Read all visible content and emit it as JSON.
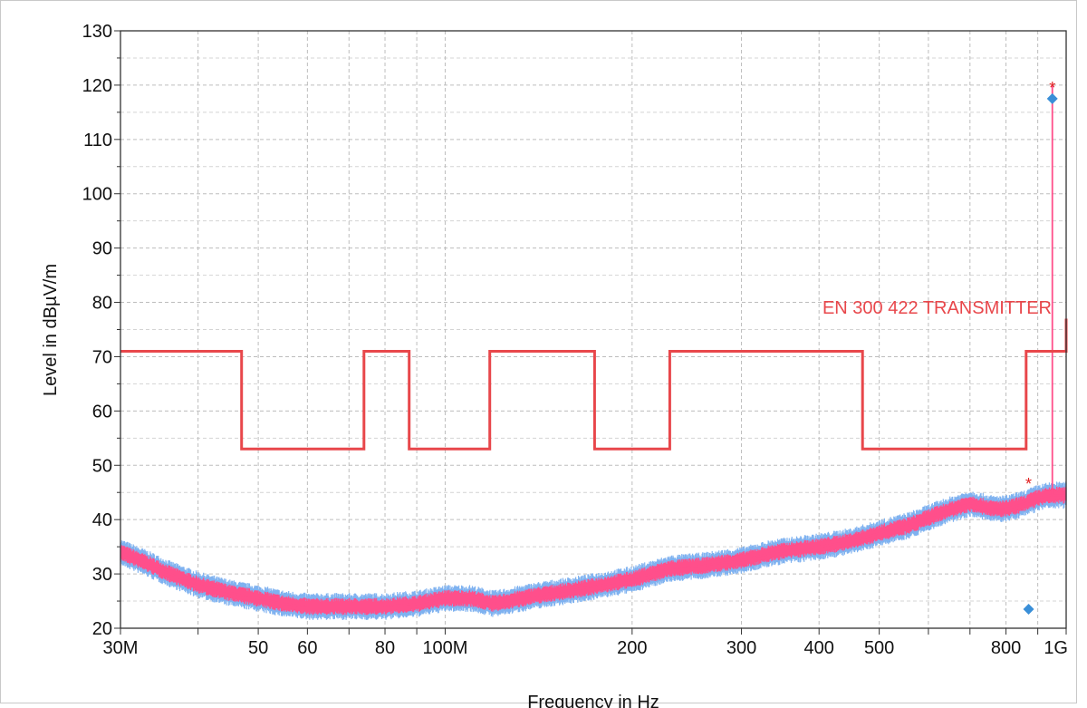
{
  "chart_data": {
    "type": "line",
    "xscale": "log",
    "xlabel": "Frequency in Hz",
    "ylabel": "Level in dBµV/m",
    "xlim": [
      30000000,
      1000000000
    ],
    "ylim": [
      20,
      130
    ],
    "grid": true,
    "x_ticks": [
      {
        "value": 30000000,
        "label": "30M"
      },
      {
        "value": 50000000,
        "label": "50"
      },
      {
        "value": 60000000,
        "label": "60"
      },
      {
        "value": 80000000,
        "label": "80"
      },
      {
        "value": 100000000,
        "label": "100M"
      },
      {
        "value": 200000000,
        "label": "200"
      },
      {
        "value": 300000000,
        "label": "300"
      },
      {
        "value": 400000000,
        "label": "400"
      },
      {
        "value": 500000000,
        "label": "500"
      },
      {
        "value": 800000000,
        "label": "800"
      },
      {
        "value": 1000000000,
        "label": "1G"
      }
    ],
    "x_minor": [
      40000000,
      70000000,
      90000000,
      600000000,
      700000000,
      900000000
    ],
    "y_ticks": [
      20,
      30,
      40,
      50,
      60,
      70,
      80,
      90,
      100,
      110,
      120,
      130
    ],
    "limit_line": {
      "name": "EN 300 422 TRANSMITTER",
      "color": "#e8474b",
      "x": [
        30000000,
        47000000,
        47000000,
        74000000,
        74000000,
        87500000,
        87500000,
        118000000,
        118000000,
        174000000,
        174000000,
        230000000,
        230000000,
        470000000,
        470000000,
        862000000,
        862000000,
        1000000000,
        1000000000
      ],
      "y": [
        71,
        71,
        53,
        53,
        71,
        71,
        53,
        53,
        71,
        71,
        53,
        53,
        71,
        71,
        53,
        53,
        71,
        71,
        77
      ]
    },
    "series": [
      {
        "color": "#ff4f8b",
        "noise_color": "#7fb2f0",
        "x": [
          30000000,
          33000000,
          36000000,
          40000000,
          45000000,
          50000000,
          55000000,
          60000000,
          65000000,
          70000000,
          75000000,
          80000000,
          90000000,
          100000000,
          110000000,
          120000000,
          140000000,
          160000000,
          180000000,
          200000000,
          230000000,
          260000000,
          300000000,
          340000000,
          400000000,
          450000000,
          500000000,
          560000000,
          620000000,
          700000000,
          760000000,
          800000000,
          860000000,
          900000000,
          950000000,
          1000000000
        ],
        "y": [
          34,
          32,
          30,
          28,
          26.5,
          25.5,
          24.5,
          24,
          24,
          24,
          24,
          24,
          24.5,
          25.5,
          25.5,
          24.5,
          26,
          27,
          28,
          29,
          31,
          31.5,
          32.5,
          34,
          35,
          36,
          37.5,
          39,
          41,
          43,
          42,
          42,
          43,
          44,
          44.5,
          44.5
        ]
      }
    ],
    "peak_markers": [
      {
        "x": 950000000,
        "y": 120,
        "color": "#e02020"
      },
      {
        "x": 870000000,
        "y": 47,
        "color": "#e02020"
      }
    ],
    "final_markers": [
      {
        "x": 950000000,
        "y": 117.5,
        "color": "#3a8fd8"
      },
      {
        "x": 870000000,
        "y": 23.5,
        "color": "#3a8fd8"
      }
    ]
  }
}
